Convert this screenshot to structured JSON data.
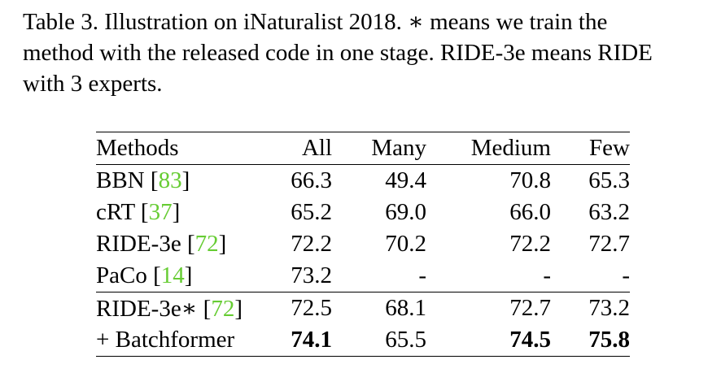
{
  "caption": {
    "line1": "Table 3.  Illustration on iNaturalist 2018.  ∗ means we train the",
    "line2": "method with the released code in one stage. RIDE-3e means RIDE",
    "line3": "with 3 experts."
  },
  "table": {
    "headers": [
      "Methods",
      "All",
      "Many",
      "Medium",
      "Few"
    ],
    "rows": [
      {
        "name": "BBN",
        "ref": "83",
        "values": [
          "66.3",
          "49.4",
          "70.8",
          "65.3"
        ]
      },
      {
        "name": "cRT",
        "ref": "37",
        "values": [
          "65.2",
          "69.0",
          "66.0",
          "63.2"
        ]
      },
      {
        "name": "RIDE-3e",
        "ref": "72",
        "values": [
          "72.2",
          "70.2",
          "72.2",
          "72.7"
        ]
      },
      {
        "name": "PaCo",
        "ref": "14",
        "values": [
          "73.2",
          "-",
          "-",
          "-"
        ]
      },
      {
        "name": "RIDE-3e∗",
        "ref": "72",
        "values": [
          "72.5",
          "68.1",
          "72.7",
          "73.2"
        ]
      },
      {
        "name": "+ Batchformer",
        "ref": "",
        "values": [
          "74.1",
          "65.5",
          "74.5",
          "75.8"
        ]
      }
    ]
  }
}
